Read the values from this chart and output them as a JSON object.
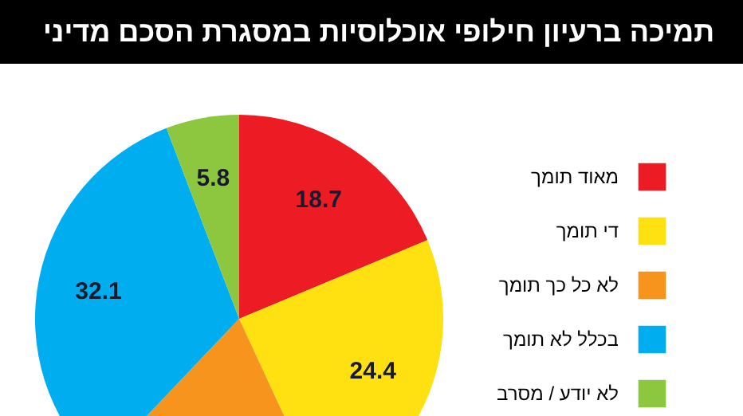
{
  "chart_data": {
    "type": "pie",
    "title": "תמיכה ברעיון חילופי אוכלוסיות במסגרת הסכם מדיני",
    "categories": [
      "מאוד תומך",
      "די תומך",
      "לא כל כך תומך",
      "בכלל לא תומך",
      "לא יודע / מסרב"
    ],
    "values": [
      18.7,
      24.4,
      19.0,
      32.1,
      5.8
    ],
    "colors": [
      "#ed1c24",
      "#ffe011",
      "#f7941d",
      "#00aeef",
      "#8dc63f"
    ],
    "value_labels": [
      "18.7",
      "24.4",
      null,
      "32.1",
      "5.8"
    ],
    "legend": "right"
  }
}
